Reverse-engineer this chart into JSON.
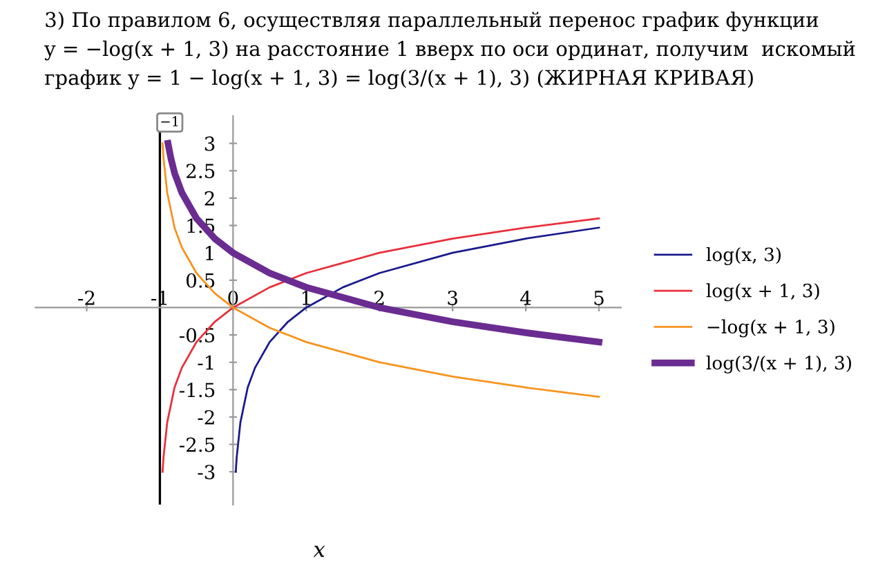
{
  "chart_data": {
    "type": "line",
    "title": "3) По правилом 6, осуществляя параллельный перенос график функции\ny = −log(x + 1, 3) на расстояние 1 вверх по оси ординат, получим  искомый\nграфик y = 1 − log(x + 1, 3) = log(3/(x + 1), 3) (ЖИРНАЯ КРИВАЯ)",
    "xlabel": "x",
    "series": [
      {
        "name": "log(x, 3)",
        "color": "#1a1a8c",
        "x": [
          0.037,
          0.05,
          0.1,
          0.2,
          0.3,
          0.5,
          0.75,
          1,
          1.5,
          2,
          3,
          4,
          5
        ],
        "values": [
          -3.0,
          -2.73,
          -2.1,
          -1.46,
          -1.1,
          -0.63,
          -0.26,
          0,
          0.37,
          0.63,
          1.0,
          1.26,
          1.46
        ]
      },
      {
        "name": "log(x + 1, 3)",
        "color": "#e8303c",
        "x": [
          -0.963,
          -0.95,
          -0.9,
          -0.8,
          -0.7,
          -0.5,
          -0.25,
          0,
          0.5,
          1,
          2,
          3,
          4,
          5
        ],
        "values": [
          -3.0,
          -2.73,
          -2.1,
          -1.46,
          -1.1,
          -0.63,
          -0.26,
          0,
          0.37,
          0.63,
          1.0,
          1.26,
          1.46,
          1.63
        ]
      },
      {
        "name": "−log(x + 1, 3)",
        "color": "#f7931e",
        "x": [
          -0.963,
          -0.95,
          -0.9,
          -0.8,
          -0.7,
          -0.5,
          -0.25,
          0,
          0.5,
          1,
          2,
          3,
          4,
          5
        ],
        "values": [
          3.0,
          2.73,
          2.1,
          1.46,
          1.1,
          0.63,
          0.26,
          0,
          -0.37,
          -0.63,
          -1.0,
          -1.26,
          -1.46,
          -1.63
        ]
      },
      {
        "name": "log(3/(x + 1), 3)",
        "color": "#6a2c91",
        "x": [
          -0.889,
          -0.85,
          -0.8,
          -0.7,
          -0.5,
          -0.25,
          0,
          0.5,
          1,
          2,
          3,
          4,
          5
        ],
        "values": [
          3.0,
          2.73,
          2.46,
          2.1,
          1.63,
          1.26,
          1.0,
          0.63,
          0.37,
          0,
          -0.26,
          -0.46,
          -0.63
        ]
      }
    ],
    "xlim": [
      -2.7,
      5.3
    ],
    "ylim": [
      -3.6,
      3.5
    ],
    "xticks": [
      -2,
      -1,
      0,
      1,
      2,
      3,
      4,
      5
    ],
    "yticks": [
      -3,
      -2.5,
      -2,
      -1.5,
      -1,
      -0.5,
      0.5,
      1,
      1.5,
      2,
      2.5,
      3
    ],
    "ref_lines": [
      {
        "axis": "x",
        "value": -1,
        "label": "−1",
        "color": "#000000"
      }
    ],
    "legend": "right",
    "grid": false
  }
}
